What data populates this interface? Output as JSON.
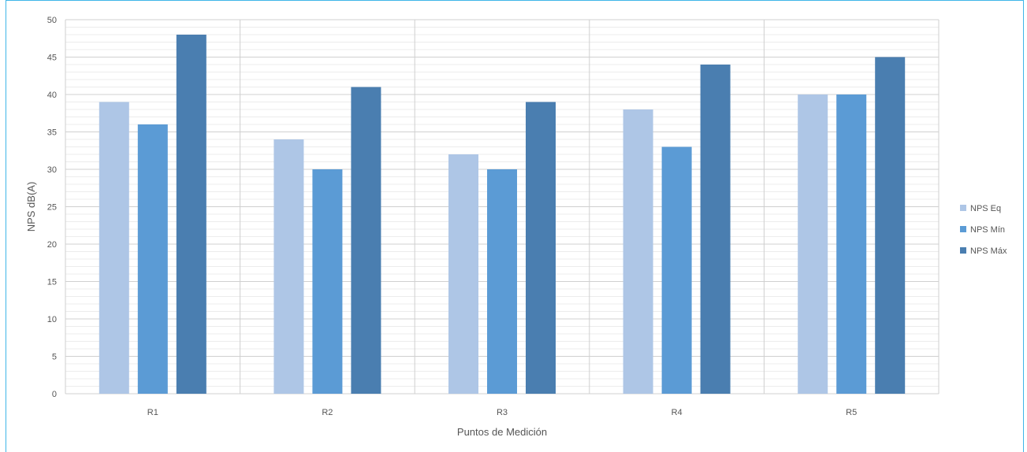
{
  "caption": "",
  "chart_data": {
    "type": "bar",
    "categories": [
      "R1",
      "R2",
      "R3",
      "R4",
      "R5"
    ],
    "series": [
      {
        "name": "NPS Eq",
        "values": [
          39,
          34,
          32,
          38,
          40
        ],
        "color": "#aec6e6"
      },
      {
        "name": "NPS Mín",
        "values": [
          36,
          30,
          30,
          33,
          40
        ],
        "color": "#5b9bd5"
      },
      {
        "name": "NPS Máx",
        "values": [
          48,
          41,
          39,
          44,
          45
        ],
        "color": "#4a7eb0"
      }
    ],
    "xlabel": "Puntos de Medición",
    "ylabel": "NPS dB(A)",
    "ylim": [
      0,
      50
    ],
    "yticks": [
      0,
      5,
      10,
      15,
      20,
      25,
      30,
      35,
      40,
      45,
      50
    ],
    "grid": true,
    "legend_position": "right"
  }
}
